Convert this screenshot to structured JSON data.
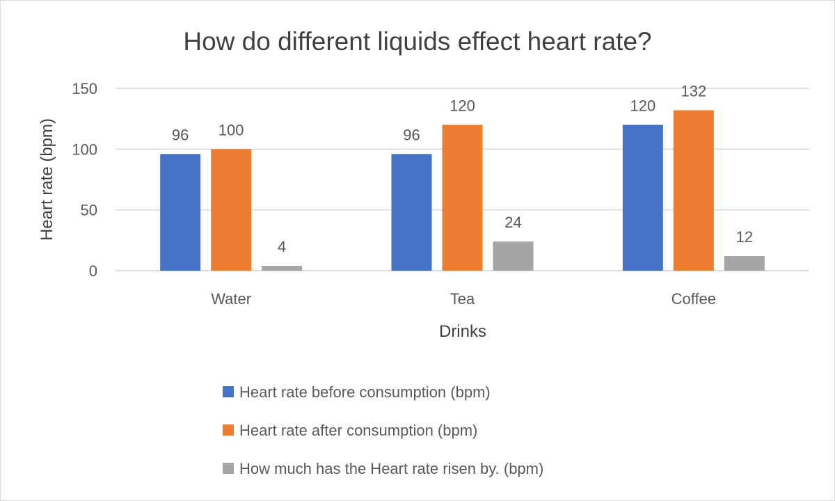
{
  "chart_data": {
    "type": "bar",
    "title": "How do different liquids effect heart rate?",
    "xlabel": "Drinks",
    "ylabel": "Heart rate (bpm)",
    "ylim": [
      0,
      150
    ],
    "yticks": [
      0,
      50,
      100,
      150
    ],
    "grid": true,
    "legend_position": "bottom",
    "categories": [
      "Water",
      "Tea",
      "Coffee"
    ],
    "series": [
      {
        "name": "Heart rate before consumption  (bpm)",
        "color": "#4472c4",
        "values": [
          96,
          96,
          120
        ]
      },
      {
        "name": "Heart rate after consumption (bpm)",
        "color": "#ed7d31",
        "values": [
          100,
          120,
          132
        ]
      },
      {
        "name": "How much has the Heart rate risen by. (bpm)",
        "color": "#a5a5a5",
        "values": [
          4,
          24,
          12
        ]
      }
    ]
  }
}
